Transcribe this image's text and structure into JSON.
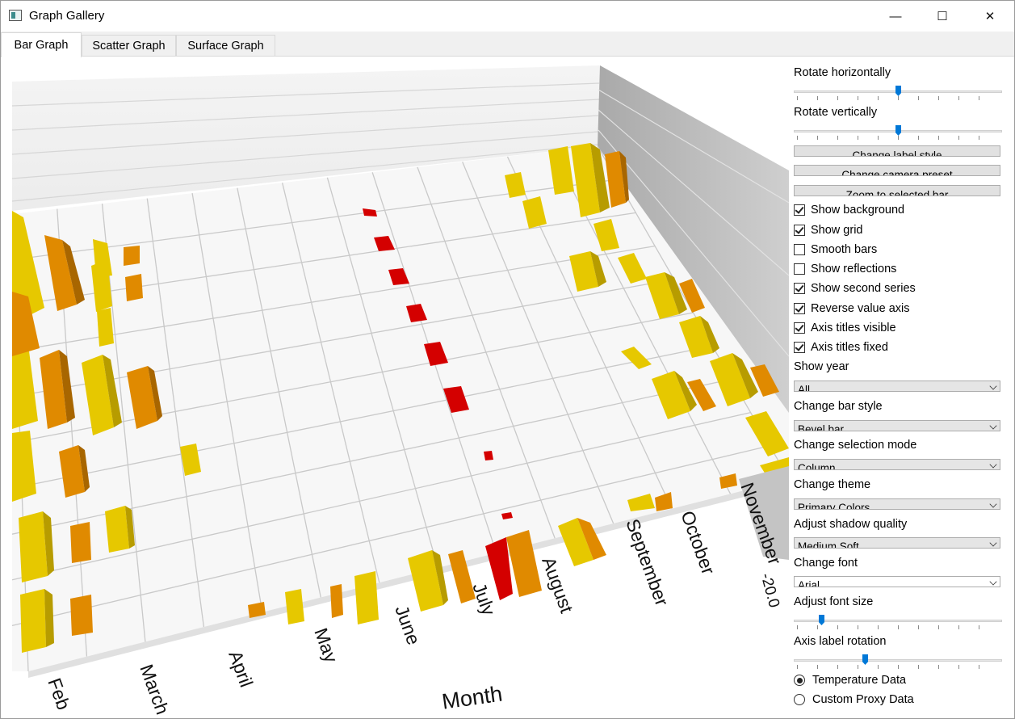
{
  "window": {
    "title": "Graph Gallery",
    "minimize_glyph": "—",
    "maximize_glyph": "☐",
    "close_glyph": "✕"
  },
  "tabs": [
    {
      "label": "Bar Graph",
      "active": true
    },
    {
      "label": "Scatter Graph",
      "active": false
    },
    {
      "label": "Surface Graph",
      "active": false
    }
  ],
  "graph": {
    "months": [
      "Feb",
      "March",
      "April",
      "May",
      "June",
      "July",
      "August",
      "September",
      "October",
      "November"
    ],
    "axis_title": "Month",
    "value_tick": "-20.0",
    "colors": {
      "series1": "#e6c800",
      "series2": "#e08a00",
      "selected": "#d40000",
      "floor": "#f7f7f7",
      "grid": "#c8c8c8",
      "wall": "#b9b9b9"
    }
  },
  "controls": {
    "rotate_h_label": "Rotate horizontally",
    "rotate_h_value": 0.5,
    "rotate_v_label": "Rotate vertically",
    "rotate_v_value": 0.5,
    "buttons": [
      "Change label style",
      "Change camera preset",
      "Zoom to selected bar"
    ],
    "checkboxes": [
      {
        "label": "Show background",
        "checked": true
      },
      {
        "label": "Show grid",
        "checked": true
      },
      {
        "label": "Smooth bars",
        "checked": false
      },
      {
        "label": "Show reflections",
        "checked": false
      },
      {
        "label": "Show second series",
        "checked": true
      },
      {
        "label": "Reverse value axis",
        "checked": true
      },
      {
        "label": "Axis titles visible",
        "checked": true
      },
      {
        "label": "Axis titles fixed",
        "checked": true
      }
    ],
    "show_year_label": "Show year",
    "show_year_value": "All",
    "bar_style_label": "Change bar style",
    "bar_style_value": "Bevel bar",
    "selection_mode_label": "Change selection mode",
    "selection_mode_value": "Column",
    "theme_label": "Change theme",
    "theme_value": "Primary Colors",
    "shadow_label": "Adjust shadow quality",
    "shadow_value": "Medium Soft",
    "font_label": "Change font",
    "font_value": "Arial",
    "font_size_label": "Adjust font size",
    "font_size_value": 0.13,
    "axis_rotation_label": "Axis label rotation",
    "axis_rotation_value": 0.34,
    "radios": [
      {
        "label": "Temperature Data",
        "checked": true
      },
      {
        "label": "Custom Proxy Data",
        "checked": false
      }
    ]
  }
}
